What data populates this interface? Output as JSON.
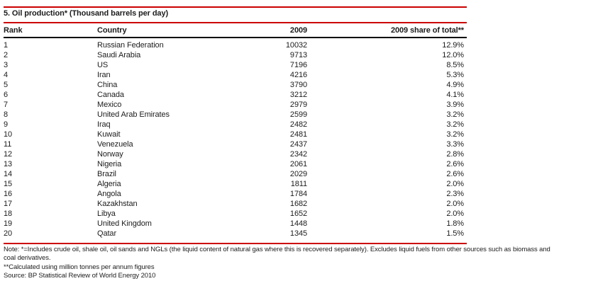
{
  "table": {
    "title": "5. Oil production* (Thousand barrels per day)",
    "columns": {
      "rank": "Rank",
      "country": "Country",
      "year": "2009",
      "share": "2009 share of total**"
    },
    "rows": [
      {
        "rank": "1",
        "country": "Russian Federation",
        "value": "10032",
        "share": "12.9%"
      },
      {
        "rank": "2",
        "country": "Saudi Arabia",
        "value": "9713",
        "share": "12.0%"
      },
      {
        "rank": "3",
        "country": "US",
        "value": "7196",
        "share": "8.5%"
      },
      {
        "rank": "4",
        "country": "Iran",
        "value": "4216",
        "share": "5.3%"
      },
      {
        "rank": "5",
        "country": "China",
        "value": "3790",
        "share": "4.9%"
      },
      {
        "rank": "6",
        "country": "Canada",
        "value": "3212",
        "share": "4.1%"
      },
      {
        "rank": "7",
        "country": "Mexico",
        "value": "2979",
        "share": "3.9%"
      },
      {
        "rank": "8",
        "country": "United Arab Emirates",
        "value": "2599",
        "share": "3.2%"
      },
      {
        "rank": "9",
        "country": "Iraq",
        "value": "2482",
        "share": "3.2%"
      },
      {
        "rank": "10",
        "country": "Kuwait",
        "value": "2481",
        "share": "3.2%"
      },
      {
        "rank": "11",
        "country": "Venezuela",
        "value": "2437",
        "share": "3.3%"
      },
      {
        "rank": "12",
        "country": "Norway",
        "value": "2342",
        "share": "2.8%"
      },
      {
        "rank": "13",
        "country": "Nigeria",
        "value": "2061",
        "share": "2.6%"
      },
      {
        "rank": "14",
        "country": "Brazil",
        "value": "2029",
        "share": "2.6%"
      },
      {
        "rank": "15",
        "country": "Algeria",
        "value": "1811",
        "share": "2.0%"
      },
      {
        "rank": "16",
        "country": "Angola",
        "value": "1784",
        "share": "2.3%"
      },
      {
        "rank": "17",
        "country": "Kazakhstan",
        "value": "1682",
        "share": "2.0%"
      },
      {
        "rank": "18",
        "country": "Libya",
        "value": "1652",
        "share": "2.0%"
      },
      {
        "rank": "19",
        "country": "United Kingdom",
        "value": "1448",
        "share": "1.8%"
      },
      {
        "rank": "20",
        "country": "Qatar",
        "value": "1345",
        "share": "1.5%"
      }
    ]
  },
  "notes": {
    "note1": "Note: *=Includes crude oil, shale oil, oil sands and NGLs (the liquid content of natural gas where this is recovered separately). Excludes liquid fuels from other sources such as biomass and coal derivatives.",
    "note2": "**Calculated using million tonnes per annum figures",
    "source": "Source: BP Statistical Review of World Energy 2010"
  },
  "colors": {
    "rule_red": "#cc0000",
    "rule_black": "#000000",
    "text": "#1c1c1c",
    "background": "#ffffff"
  }
}
